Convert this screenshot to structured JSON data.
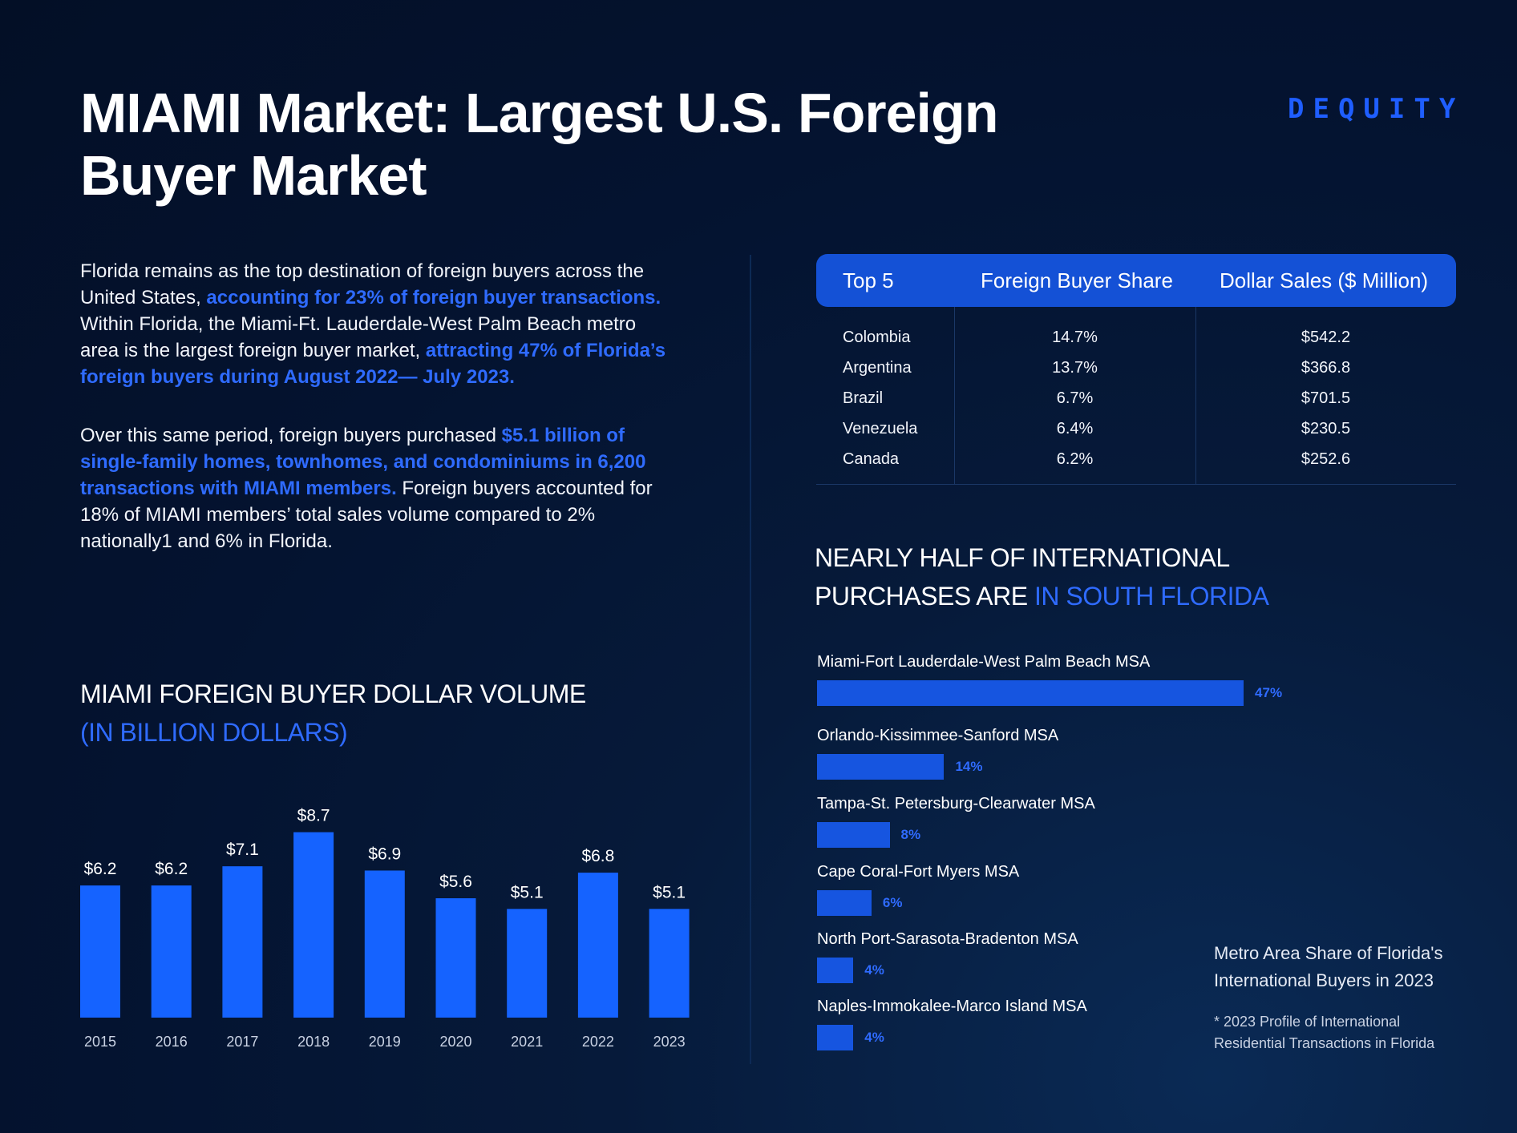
{
  "header": {
    "title": "MIAMI Market: Largest U.S. Foreign Buyer Market",
    "logo": "DEQUITY"
  },
  "intro": {
    "p1_a": "Florida remains as the top destination of foreign buyers across the United States, ",
    "p1_b": "accounting for 23% of foreign buyer transactions.",
    "p1_c": " Within Florida, the Miami-Ft. Lauderdale-West Palm Beach metro area is the largest foreign buyer market, ",
    "p1_d": "attracting 47% of Florida’s foreign buyers during August 2022— July 2023.",
    "p2_a": "Over this same period, foreign buyers purchased ",
    "p2_b": "$5.1 billion of single-family homes, townhomes, and condominiums in 6,200 transactions with MIAMI members.",
    "p2_c": " Foreign buyers accounted for 18% of MIAMI members’ total sales volume compared to 2% nationally1 and 6% in Florida."
  },
  "table": {
    "headers": [
      "Top 5",
      "Foreign Buyer Share",
      "Dollar Sales ($ Million)"
    ],
    "rows": [
      [
        "Colombia",
        "14.7%",
        "$542.2"
      ],
      [
        "Argentina",
        "13.7%",
        "$366.8"
      ],
      [
        "Brazil",
        "6.7%",
        "$701.5"
      ],
      [
        "Venezuela",
        "6.4%",
        "$230.5"
      ],
      [
        "Canada",
        "6.2%",
        "$252.6"
      ]
    ]
  },
  "bar_section": {
    "title_line1": "MIAMI FOREIGN BUYER DOLLAR VOLUME",
    "title_line2": "(IN BILLION DOLLARS)"
  },
  "hbar_section": {
    "title_line1": "NEARLY HALF OF INTERNATIONAL",
    "title_line2a": "PURCHASES ARE ",
    "title_line2b": "IN SOUTH FLORIDA",
    "caption": "Metro Area Share of Florida's International Buyers in 2023",
    "footnote": "* 2023 Profile of International Residential Transactions in Florida"
  },
  "chart_data": [
    {
      "type": "bar",
      "title": "MIAMI FOREIGN BUYER DOLLAR VOLUME (IN BILLION DOLLARS)",
      "categories": [
        "2015",
        "2016",
        "2017",
        "2018",
        "2019",
        "2020",
        "2021",
        "2022",
        "2023"
      ],
      "values": [
        6.2,
        6.2,
        7.1,
        8.7,
        6.9,
        5.6,
        5.1,
        6.8,
        5.1
      ],
      "labels": [
        "$6.2",
        "$6.2",
        "$7.1",
        "$8.7",
        "$6.9",
        "$5.6",
        "$5.1",
        "$6.8",
        "$5.1"
      ],
      "color": "#1563ff",
      "grid": false
    },
    {
      "type": "bar",
      "orientation": "horizontal",
      "title": "NEARLY HALF OF INTERNATIONAL PURCHASES ARE IN SOUTH FLORIDA",
      "categories": [
        "Miami-Fort Lauderdale-West Palm Beach MSA",
        "Orlando-Kissimmee-Sanford MSA",
        "Tampa-St. Petersburg-Clearwater MSA",
        "Cape Coral-Fort Myers MSA",
        "North Port-Sarasota-Bradenton MSA",
        "Naples-Immokalee-Marco Island MSA"
      ],
      "values": [
        47,
        14,
        8,
        6,
        4,
        4
      ],
      "labels": [
        "47%",
        "14%",
        "8%",
        "6%",
        "4%",
        "4%"
      ],
      "color": "#1655e0",
      "grid": false
    }
  ]
}
